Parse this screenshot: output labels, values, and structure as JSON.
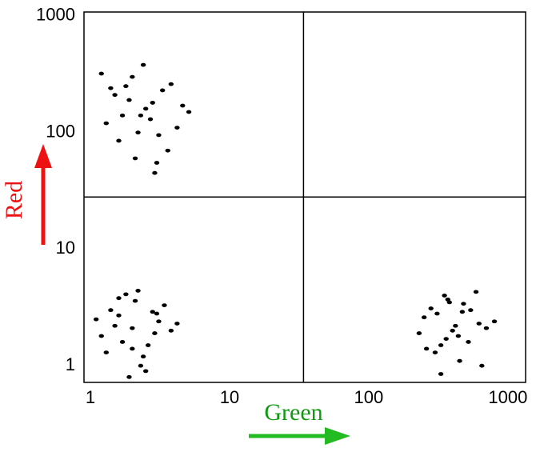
{
  "chart_data": {
    "type": "scatter",
    "x_label": "Green",
    "y_label": "Red",
    "log_x": true,
    "log_y": true,
    "xlim": [
      0.9,
      1340
    ],
    "ylim": [
      0.72,
      1080
    ],
    "xticks": [
      1,
      10,
      100,
      1000
    ],
    "yticks": [
      1,
      10,
      100,
      1000
    ],
    "quadrant_lines": {
      "x": 34,
      "y": 28
    },
    "series": [
      {
        "color": "#000000",
        "x": [
          2.3,
          1.5,
          3.1,
          2.0,
          1.3,
          2.8,
          3.6,
          1.8,
          2.5,
          4.2,
          1.2,
          2.1,
          3.3,
          1.6,
          2.7,
          5.1,
          1.9,
          2.4,
          3.0,
          1.4,
          2.2,
          4.6,
          1.7,
          2.9,
          3.8
        ],
        "y": [
          140,
          210,
          95,
          300,
          120,
          180,
          70,
          250,
          160,
          110,
          320,
          60,
          230,
          85,
          130,
          150,
          190,
          380,
          55,
          240,
          100,
          170,
          140,
          45,
          260
        ]
      },
      {
        "color": "#000000",
        "x": [
          2.0,
          1.4,
          2.6,
          1.8,
          3.1,
          1.2,
          2.3,
          1.6,
          3.8,
          2.1,
          1.3,
          2.8,
          1.9,
          4.2,
          1.5,
          2.4,
          3.4,
          1.7,
          2.2,
          1.1,
          2.9,
          1.6,
          2.5,
          2.0,
          3.0
        ],
        "y": [
          2.1,
          3.0,
          1.5,
          4.1,
          2.4,
          1.8,
          1.0,
          2.7,
          2.0,
          3.6,
          1.3,
          2.9,
          0.8,
          2.3,
          2.2,
          1.2,
          3.3,
          1.6,
          4.4,
          2.5,
          1.9,
          3.8,
          0.9,
          1.4,
          2.8
        ]
      },
      {
        "color": "#000000",
        "x": [
          400,
          280,
          520,
          350,
          620,
          230,
          450,
          310,
          700,
          380,
          260,
          540,
          330,
          800,
          420,
          300,
          480,
          360,
          590,
          250,
          440,
          370,
          650,
          330,
          470
        ],
        "y": [
          2.0,
          3.1,
          1.6,
          4.0,
          2.3,
          1.9,
          1.1,
          2.8,
          2.1,
          3.5,
          1.4,
          3.0,
          0.85,
          2.4,
          2.2,
          1.3,
          3.4,
          1.7,
          4.3,
          2.6,
          1.8,
          3.7,
          1.0,
          1.5,
          2.9
        ]
      }
    ]
  }
}
